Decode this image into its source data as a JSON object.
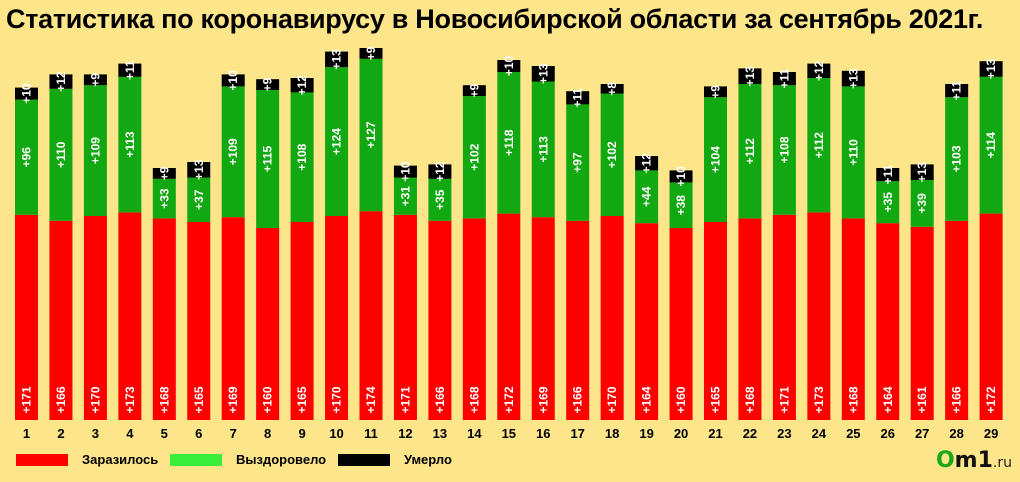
{
  "colors": {
    "background": "#fde58a",
    "infected": "#ff0000",
    "recovered": "#11a811",
    "died": "#000000",
    "legend_recovered": "#38ee38"
  },
  "logo": {
    "brand": "Om1",
    "first": "O",
    "rest": "m1",
    "suffix": ".ru"
  },
  "chart_data": {
    "type": "bar",
    "stacked": true,
    "title": "Статистика по коронавирусу в Новосибирской области за сентябрь 2021г.",
    "xlabel": "",
    "ylabel": "",
    "grid": false,
    "legend_position": "bottom-left",
    "categories": [
      "1",
      "2",
      "3",
      "4",
      "5",
      "6",
      "7",
      "8",
      "9",
      "10",
      "11",
      "12",
      "13",
      "14",
      "15",
      "16",
      "17",
      "18",
      "19",
      "20",
      "21",
      "22",
      "23",
      "24",
      "25",
      "26",
      "27",
      "28",
      "29"
    ],
    "series": [
      {
        "name": "Заразилось",
        "color": "#ff0000",
        "values": [
          171,
          166,
          170,
          173,
          168,
          165,
          169,
          160,
          165,
          170,
          174,
          171,
          166,
          168,
          172,
          169,
          166,
          170,
          164,
          160,
          165,
          168,
          171,
          173,
          168,
          164,
          161,
          166,
          172
        ]
      },
      {
        "name": "Выздоровело",
        "color": "#11a811",
        "values": [
          96,
          110,
          109,
          113,
          33,
          37,
          109,
          115,
          108,
          124,
          127,
          31,
          35,
          102,
          118,
          113,
          97,
          102,
          44,
          38,
          104,
          112,
          108,
          112,
          110,
          35,
          39,
          103,
          114
        ]
      },
      {
        "name": "Умерло",
        "color": "#000000",
        "values": [
          10,
          12,
          9,
          11,
          9,
          13,
          10,
          9,
          12,
          13,
          9,
          10,
          12,
          9,
          10,
          13,
          11,
          8,
          12,
          10,
          9,
          13,
          11,
          12,
          13,
          11,
          13,
          11,
          13
        ]
      }
    ]
  }
}
